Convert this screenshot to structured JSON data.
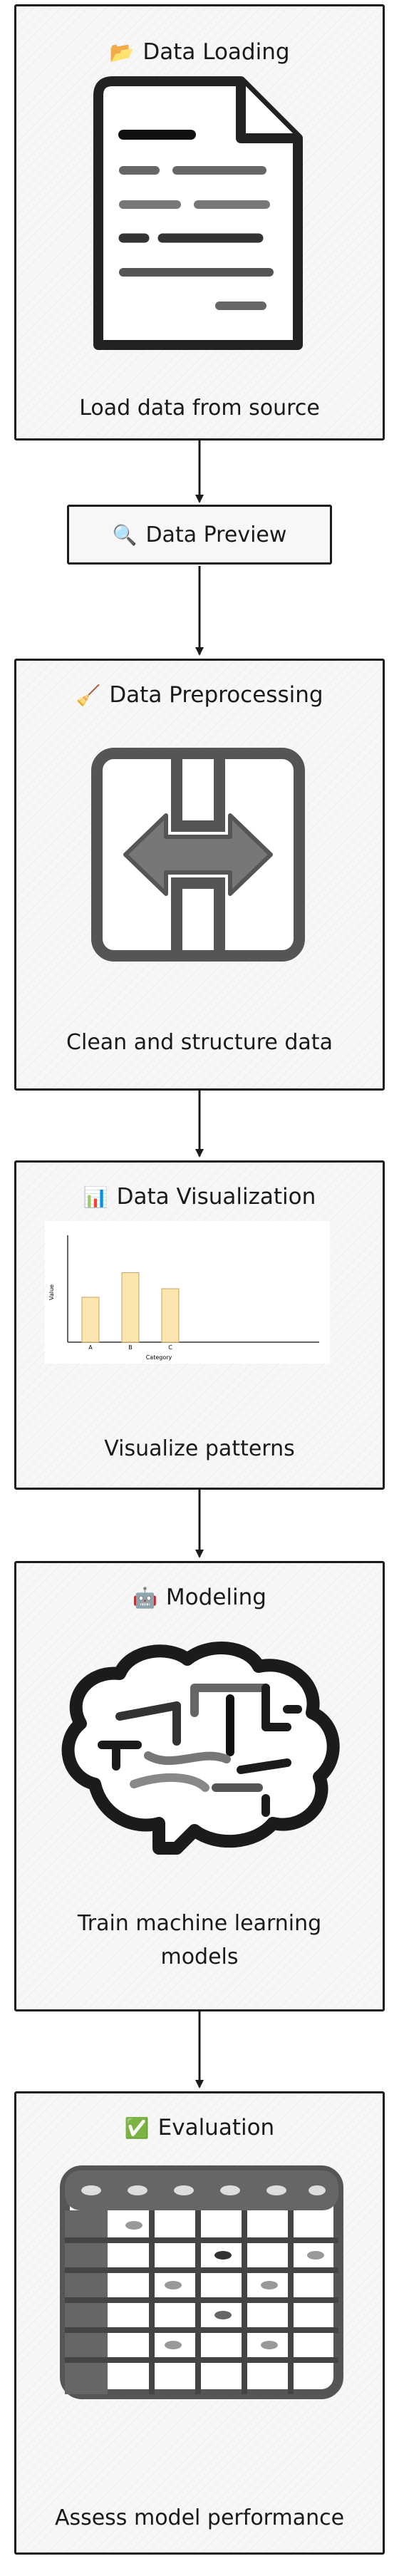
{
  "steps": [
    {
      "icon": "📂",
      "title": "Data Loading",
      "caption": "Load data from source"
    },
    {
      "icon": "🔍",
      "title": "Data Preview"
    },
    {
      "icon": "🧹",
      "title": "Data Preprocessing",
      "caption": "Clean and structure data"
    },
    {
      "icon": "📊",
      "title": "Data Visualization",
      "caption": "Visualize patterns"
    },
    {
      "icon": "🤖",
      "title": "Modeling",
      "caption": "Train machine learning models"
    },
    {
      "icon": "✅",
      "title": "Evaluation",
      "caption": "Assess model performance"
    }
  ],
  "chart_data": {
    "type": "bar",
    "categories": [
      "A",
      "B",
      "C"
    ],
    "values": [
      42,
      65,
      50
    ],
    "xlabel": "Category",
    "ylabel": "Value",
    "ylim": [
      0,
      100
    ],
    "bar_color": "#fbe6b0"
  }
}
